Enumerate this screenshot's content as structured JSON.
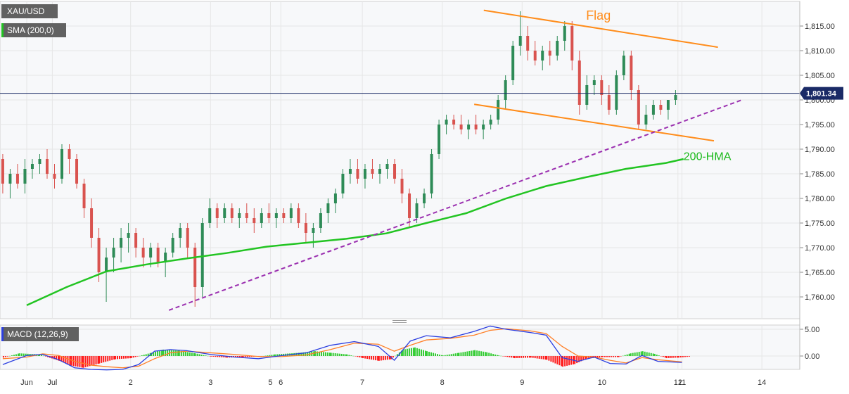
{
  "symbol": "XAU/USD",
  "indicator_label": "SMA (200,0)",
  "macd_label": "MACD (12,26,9)",
  "colors": {
    "up": "#2e8b57",
    "down": "#d9534f",
    "sma": "#22c422",
    "flag": "#ff8c1a",
    "trend": "#9b30b0",
    "macd": "#2c3fe0",
    "signal": "#ff7f27",
    "hist_up": "#33cc33",
    "hist_down": "#ff1a1a",
    "price_tag": "#1a2a66"
  },
  "chart_data": [
    {
      "type": "candlestick",
      "title": "XAU/USD",
      "y_ticks": [
        "1,815.00",
        "1,810.00",
        "1,805.00",
        "1,800.00",
        "1,795.00",
        "1,790.00",
        "1,785.00",
        "1,780.00",
        "1,775.00",
        "1,770.00",
        "1,765.00",
        "1,760.00"
      ],
      "x_ticks": [
        {
          "label": "Jun",
          "day": 0.0
        },
        {
          "label": "Jul",
          "day": 0.32
        },
        {
          "label": "2",
          "day": 1.3
        },
        {
          "label": "3",
          "day": 2.3
        },
        {
          "label": "5",
          "day": 3.05
        },
        {
          "label": "6",
          "day": 3.18
        },
        {
          "label": "7",
          "day": 4.2
        },
        {
          "label": "8",
          "day": 5.2
        },
        {
          "label": "9",
          "day": 6.2
        },
        {
          "label": "10",
          "day": 7.2
        },
        {
          "label": "11",
          "day": 8.2
        },
        {
          "label": "12",
          "day": 8.15
        },
        {
          "label": "14",
          "day": 9.2
        }
      ],
      "ylim": [
        1757,
        1818
      ],
      "current_price": "1,801.34",
      "current_value": 1801.34,
      "annotations": [
        {
          "text": "Flag",
          "day": 7.0,
          "price": 1816.3
        },
        {
          "text": "200-HMA",
          "day": 8.22,
          "price": 1787.8
        }
      ],
      "ohlc": [
        [
          1788,
          1789,
          1781,
          1783
        ],
        [
          1783,
          1786,
          1780,
          1785
        ],
        [
          1785,
          1787,
          1782,
          1783
        ],
        [
          1783,
          1788,
          1781,
          1786
        ],
        [
          1786,
          1788,
          1784,
          1787
        ],
        [
          1787,
          1789,
          1785,
          1788
        ],
        [
          1788,
          1790,
          1784,
          1785
        ],
        [
          1785,
          1787,
          1782,
          1784
        ],
        [
          1784,
          1791,
          1783,
          1790
        ],
        [
          1790,
          1791,
          1785,
          1788
        ],
        [
          1788,
          1789,
          1782,
          1783
        ],
        [
          1783,
          1784,
          1776,
          1778
        ],
        [
          1778,
          1780,
          1770,
          1772
        ],
        [
          1772,
          1774,
          1763,
          1765
        ],
        [
          1765,
          1770,
          1759,
          1768
        ],
        [
          1768,
          1772,
          1765,
          1770
        ],
        [
          1770,
          1774,
          1767,
          1772
        ],
        [
          1772,
          1775,
          1769,
          1773
        ],
        [
          1773,
          1774,
          1768,
          1770
        ],
        [
          1770,
          1772,
          1766,
          1768
        ],
        [
          1768,
          1771,
          1766,
          1770
        ],
        [
          1770,
          1771,
          1766,
          1767
        ],
        [
          1767,
          1770,
          1764,
          1769
        ],
        [
          1769,
          1773,
          1768,
          1772
        ],
        [
          1772,
          1775,
          1770,
          1774
        ],
        [
          1774,
          1775,
          1768,
          1770
        ],
        [
          1770,
          1771,
          1758,
          1762
        ],
        [
          1762,
          1776,
          1760,
          1775
        ],
        [
          1775,
          1780,
          1774,
          1778
        ],
        [
          1778,
          1779,
          1774,
          1776
        ],
        [
          1776,
          1779,
          1775,
          1778
        ],
        [
          1778,
          1779,
          1775,
          1776
        ],
        [
          1776,
          1778,
          1774,
          1777
        ],
        [
          1777,
          1779,
          1775,
          1776
        ],
        [
          1776,
          1778,
          1773,
          1775
        ],
        [
          1775,
          1778,
          1774,
          1777
        ],
        [
          1777,
          1779,
          1775,
          1776
        ],
        [
          1776,
          1778,
          1774,
          1777
        ],
        [
          1777,
          1778,
          1775,
          1776
        ],
        [
          1776,
          1779,
          1775,
          1778
        ],
        [
          1778,
          1779,
          1774,
          1775
        ],
        [
          1775,
          1777,
          1771,
          1773
        ],
        [
          1773,
          1775,
          1770,
          1774
        ],
        [
          1774,
          1778,
          1773,
          1777
        ],
        [
          1777,
          1780,
          1775,
          1779
        ],
        [
          1779,
          1782,
          1777,
          1781
        ],
        [
          1781,
          1786,
          1780,
          1785
        ],
        [
          1785,
          1788,
          1783,
          1786
        ],
        [
          1786,
          1788,
          1783,
          1784
        ],
        [
          1784,
          1787,
          1782,
          1786
        ],
        [
          1786,
          1788,
          1784,
          1785
        ],
        [
          1785,
          1787,
          1783,
          1786
        ],
        [
          1786,
          1788,
          1784,
          1787
        ],
        [
          1787,
          1788,
          1783,
          1784
        ],
        [
          1784,
          1786,
          1779,
          1781
        ],
        [
          1781,
          1782,
          1774,
          1776
        ],
        [
          1776,
          1780,
          1775,
          1779
        ],
        [
          1779,
          1782,
          1778,
          1781
        ],
        [
          1781,
          1790,
          1780,
          1789
        ],
        [
          1789,
          1796,
          1788,
          1795
        ],
        [
          1795,
          1797,
          1793,
          1796
        ],
        [
          1796,
          1797,
          1794,
          1795
        ],
        [
          1795,
          1797,
          1793,
          1794
        ],
        [
          1794,
          1796,
          1792,
          1795
        ],
        [
          1795,
          1797,
          1793,
          1794
        ],
        [
          1794,
          1796,
          1792,
          1795
        ],
        [
          1795,
          1797,
          1794,
          1796
        ],
        [
          1796,
          1801,
          1795,
          1800
        ],
        [
          1800,
          1805,
          1798,
          1804
        ],
        [
          1804,
          1812,
          1803,
          1811
        ],
        [
          1811,
          1818,
          1809,
          1813
        ],
        [
          1813,
          1815,
          1808,
          1810
        ],
        [
          1810,
          1812,
          1807,
          1808
        ],
        [
          1808,
          1811,
          1806,
          1810
        ],
        [
          1810,
          1812,
          1807,
          1809
        ],
        [
          1809,
          1813,
          1808,
          1812
        ],
        [
          1812,
          1816,
          1810,
          1815
        ],
        [
          1815,
          1816,
          1806,
          1808
        ],
        [
          1808,
          1810,
          1797,
          1799
        ],
        [
          1799,
          1805,
          1798,
          1803
        ],
        [
          1803,
          1805,
          1801,
          1804
        ],
        [
          1804,
          1805,
          1799,
          1801
        ],
        [
          1801,
          1803,
          1797,
          1798
        ],
        [
          1798,
          1806,
          1797,
          1805
        ],
        [
          1805,
          1810,
          1804,
          1809
        ],
        [
          1809,
          1810,
          1800,
          1802
        ],
        [
          1802,
          1803,
          1794,
          1795
        ],
        [
          1795,
          1799,
          1794,
          1797
        ],
        [
          1797,
          1800,
          1796,
          1799
        ],
        [
          1799,
          1800,
          1797,
          1798
        ],
        [
          1798,
          1800,
          1796,
          1800
        ],
        [
          1800,
          1802,
          1799,
          1801
        ]
      ],
      "sma200": [
        [
          0,
          1758.3
        ],
        [
          0.5,
          1762.0
        ],
        [
          1.0,
          1765.2
        ],
        [
          1.5,
          1766.6
        ],
        [
          2.0,
          1767.8
        ],
        [
          2.5,
          1768.9
        ],
        [
          3.0,
          1770.2
        ],
        [
          3.5,
          1771.0
        ],
        [
          4.0,
          1771.8
        ],
        [
          4.5,
          1772.9
        ],
        [
          5.0,
          1775.0
        ],
        [
          5.5,
          1777.0
        ],
        [
          6.0,
          1780.0
        ],
        [
          6.5,
          1782.5
        ],
        [
          7.0,
          1784.3
        ],
        [
          7.5,
          1786.0
        ],
        [
          8.0,
          1787.2
        ],
        [
          8.22,
          1788.0
        ]
      ],
      "flag_upper": [
        [
          5.72,
          1818.2
        ],
        [
          8.65,
          1810.7
        ]
      ],
      "flag_lower": [
        [
          5.6,
          1799.1
        ],
        [
          8.6,
          1791.7
        ]
      ],
      "trend_line": [
        [
          1.78,
          1757.3
        ],
        [
          8.95,
          1800.0
        ]
      ]
    },
    {
      "type": "macd",
      "title": "MACD (12,26,9)",
      "y_ticks": [
        "5.00",
        "0.00"
      ],
      "ylim": [
        -3.5,
        6.5
      ],
      "macd": [
        [
          0,
          -1.6
        ],
        [
          0.3,
          0.1
        ],
        [
          0.5,
          0.3
        ],
        [
          0.7,
          -0.7
        ],
        [
          0.9,
          -2.2
        ],
        [
          1.1,
          -2.5
        ],
        [
          1.3,
          -2.6
        ],
        [
          1.5,
          -2.5
        ],
        [
          1.7,
          -1.6
        ],
        [
          1.9,
          0.9
        ],
        [
          2.1,
          1.2
        ],
        [
          2.3,
          1.0
        ],
        [
          2.6,
          0.3
        ],
        [
          2.9,
          -0.2
        ],
        [
          3.2,
          -0.5
        ],
        [
          3.5,
          0.1
        ],
        [
          3.8,
          0.6
        ],
        [
          4.1,
          2.0
        ],
        [
          4.4,
          2.7
        ],
        [
          4.7,
          1.8
        ],
        [
          4.9,
          -0.8
        ],
        [
          5.1,
          2.8
        ],
        [
          5.3,
          3.8
        ],
        [
          5.6,
          3.4
        ],
        [
          5.9,
          4.6
        ],
        [
          6.1,
          5.6
        ],
        [
          6.3,
          5.0
        ],
        [
          6.6,
          4.4
        ],
        [
          6.8,
          3.9
        ],
        [
          7.0,
          -0.3
        ],
        [
          7.2,
          -1.0
        ],
        [
          7.4,
          -0.2
        ],
        [
          7.6,
          -1.4
        ],
        [
          7.8,
          -1.5
        ],
        [
          8.0,
          0.1
        ],
        [
          8.2,
          -1.0
        ],
        [
          8.5,
          -1.2
        ]
      ],
      "signal": [
        [
          0,
          -0.5
        ],
        [
          0.3,
          -0.2
        ],
        [
          0.5,
          0.4
        ],
        [
          0.7,
          0.1
        ],
        [
          0.9,
          -1.0
        ],
        [
          1.1,
          -1.7
        ],
        [
          1.3,
          -2.0
        ],
        [
          1.5,
          -2.2
        ],
        [
          1.7,
          -1.9
        ],
        [
          1.9,
          -0.5
        ],
        [
          2.1,
          0.6
        ],
        [
          2.3,
          0.9
        ],
        [
          2.6,
          0.6
        ],
        [
          2.9,
          0.3
        ],
        [
          3.2,
          -0.1
        ],
        [
          3.5,
          -0.1
        ],
        [
          3.8,
          0.2
        ],
        [
          4.1,
          1.2
        ],
        [
          4.4,
          2.4
        ],
        [
          4.7,
          2.2
        ],
        [
          4.9,
          0.9
        ],
        [
          5.1,
          2.0
        ],
        [
          5.3,
          3.0
        ],
        [
          5.6,
          3.3
        ],
        [
          5.9,
          3.9
        ],
        [
          6.1,
          4.8
        ],
        [
          6.3,
          5.1
        ],
        [
          6.6,
          4.7
        ],
        [
          6.8,
          4.2
        ],
        [
          7.0,
          1.8
        ],
        [
          7.2,
          0.0
        ],
        [
          7.4,
          -0.2
        ],
        [
          7.6,
          -0.8
        ],
        [
          7.8,
          -1.3
        ],
        [
          8.0,
          -0.3
        ],
        [
          8.2,
          -0.7
        ],
        [
          8.5,
          -1.1
        ]
      ],
      "histogram": [
        [
          0,
          -0.3
        ],
        [
          0.2,
          0.5
        ],
        [
          0.45,
          0.3
        ],
        [
          0.7,
          -0.9
        ],
        [
          0.85,
          -1.8
        ],
        [
          1.0,
          -2.2
        ],
        [
          1.2,
          -1.4
        ],
        [
          1.4,
          -0.6
        ],
        [
          1.6,
          -0.4
        ],
        [
          1.85,
          0.6
        ],
        [
          2.0,
          1.2
        ],
        [
          2.2,
          1.0
        ],
        [
          2.4,
          0.5
        ],
        [
          2.6,
          -0.1
        ],
        [
          2.8,
          -0.3
        ],
        [
          3.0,
          -0.2
        ],
        [
          3.2,
          -0.1
        ],
        [
          3.4,
          0.3
        ],
        [
          3.7,
          0.6
        ],
        [
          3.9,
          0.9
        ],
        [
          4.1,
          0.6
        ],
        [
          4.3,
          0.3
        ],
        [
          4.5,
          -0.4
        ],
        [
          4.7,
          -0.9
        ],
        [
          4.85,
          -0.6
        ],
        [
          5.0,
          1.2
        ],
        [
          5.15,
          1.6
        ],
        [
          5.3,
          0.9
        ],
        [
          5.5,
          0.1
        ],
        [
          5.7,
          0.6
        ],
        [
          5.9,
          1.1
        ],
        [
          6.05,
          0.7
        ],
        [
          6.2,
          0.1
        ],
        [
          6.4,
          -0.4
        ],
        [
          6.6,
          -0.3
        ],
        [
          6.8,
          -0.7
        ],
        [
          7.0,
          -2.0
        ],
        [
          7.15,
          -1.5
        ],
        [
          7.3,
          -0.5
        ],
        [
          7.5,
          -0.2
        ],
        [
          7.7,
          -0.2
        ],
        [
          7.85,
          0.5
        ],
        [
          8.0,
          0.9
        ],
        [
          8.15,
          0.4
        ],
        [
          8.3,
          -0.4
        ],
        [
          8.45,
          -0.3
        ],
        [
          8.6,
          -0.1
        ]
      ]
    }
  ]
}
